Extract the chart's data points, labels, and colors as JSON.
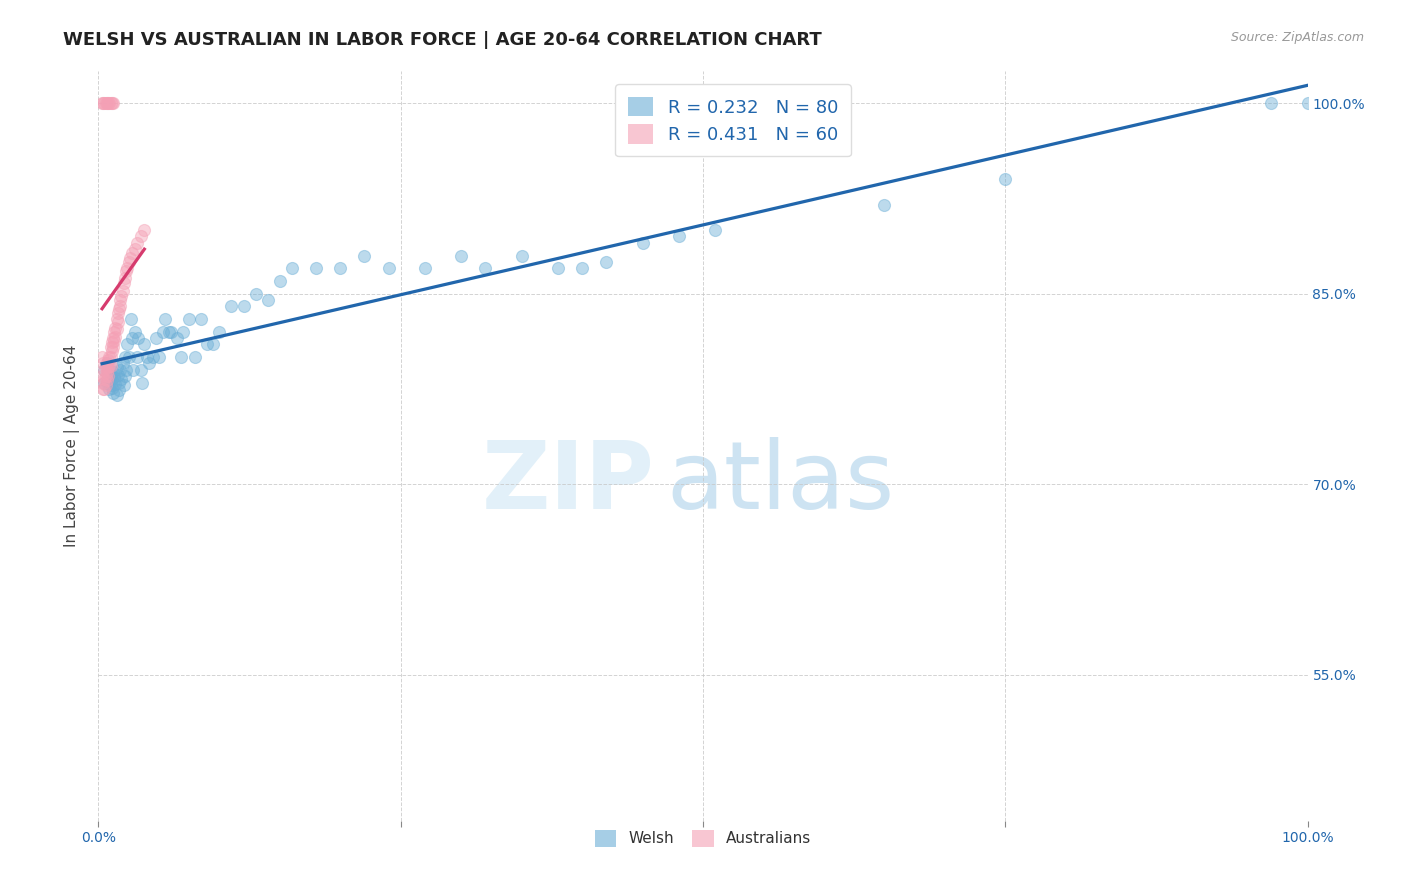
{
  "title": "WELSH VS AUSTRALIAN IN LABOR FORCE | AGE 20-64 CORRELATION CHART",
  "source": "Source: ZipAtlas.com",
  "ylabel": "In Labor Force | Age 20-64",
  "ytick_labels": [
    "100.0%",
    "85.0%",
    "70.0%",
    "55.0%"
  ],
  "ytick_values": [
    1.0,
    0.85,
    0.7,
    0.55
  ],
  "xlim": [
    0.0,
    1.0
  ],
  "ylim": [
    0.435,
    1.025
  ],
  "welsh_color": "#6baed6",
  "australians_color": "#f4a0b5",
  "welsh_line_color": "#2166ac",
  "australians_line_color": "#d63b6e",
  "background_color": "#ffffff",
  "grid_color": "#c8c8c8",
  "title_fontsize": 13,
  "axis_label_fontsize": 11,
  "tick_fontsize": 10,
  "marker_size": 75,
  "marker_alpha": 0.45,
  "welsh_scatter_x": [
    0.005,
    0.005,
    0.007,
    0.007,
    0.008,
    0.009,
    0.009,
    0.01,
    0.01,
    0.011,
    0.011,
    0.012,
    0.012,
    0.013,
    0.014,
    0.015,
    0.015,
    0.016,
    0.017,
    0.017,
    0.018,
    0.019,
    0.02,
    0.021,
    0.022,
    0.022,
    0.023,
    0.024,
    0.025,
    0.027,
    0.028,
    0.029,
    0.03,
    0.032,
    0.033,
    0.035,
    0.036,
    0.038,
    0.04,
    0.042,
    0.045,
    0.048,
    0.05,
    0.053,
    0.055,
    0.058,
    0.06,
    0.065,
    0.068,
    0.07,
    0.075,
    0.08,
    0.085,
    0.09,
    0.095,
    0.1,
    0.11,
    0.12,
    0.13,
    0.14,
    0.15,
    0.16,
    0.18,
    0.2,
    0.22,
    0.24,
    0.27,
    0.3,
    0.32,
    0.35,
    0.38,
    0.4,
    0.42,
    0.45,
    0.48,
    0.51,
    0.65,
    0.75,
    0.97,
    1.0
  ],
  "welsh_scatter_y": [
    0.79,
    0.78,
    0.795,
    0.78,
    0.785,
    0.78,
    0.775,
    0.785,
    0.778,
    0.783,
    0.776,
    0.788,
    0.772,
    0.784,
    0.779,
    0.792,
    0.77,
    0.786,
    0.78,
    0.774,
    0.79,
    0.783,
    0.795,
    0.778,
    0.8,
    0.785,
    0.79,
    0.81,
    0.8,
    0.83,
    0.815,
    0.79,
    0.82,
    0.8,
    0.815,
    0.79,
    0.78,
    0.81,
    0.8,
    0.795,
    0.8,
    0.815,
    0.8,
    0.82,
    0.83,
    0.82,
    0.82,
    0.815,
    0.8,
    0.82,
    0.83,
    0.8,
    0.83,
    0.81,
    0.81,
    0.82,
    0.84,
    0.84,
    0.85,
    0.845,
    0.86,
    0.87,
    0.87,
    0.87,
    0.88,
    0.87,
    0.87,
    0.88,
    0.87,
    0.88,
    0.87,
    0.87,
    0.875,
    0.89,
    0.895,
    0.9,
    0.92,
    0.94,
    1.0,
    1.0
  ],
  "australian_scatter_x": [
    0.003,
    0.003,
    0.004,
    0.004,
    0.004,
    0.005,
    0.005,
    0.005,
    0.006,
    0.006,
    0.006,
    0.007,
    0.007,
    0.007,
    0.008,
    0.008,
    0.008,
    0.009,
    0.009,
    0.01,
    0.01,
    0.01,
    0.011,
    0.011,
    0.012,
    0.012,
    0.013,
    0.013,
    0.014,
    0.014,
    0.015,
    0.015,
    0.016,
    0.016,
    0.017,
    0.018,
    0.018,
    0.019,
    0.02,
    0.021,
    0.022,
    0.023,
    0.024,
    0.025,
    0.026,
    0.028,
    0.03,
    0.032,
    0.035,
    0.038,
    0.003,
    0.004,
    0.005,
    0.006,
    0.007,
    0.008,
    0.009,
    0.01,
    0.011,
    0.012
  ],
  "australian_scatter_y": [
    0.8,
    0.785,
    0.795,
    0.78,
    0.775,
    0.79,
    0.783,
    0.775,
    0.792,
    0.785,
    0.778,
    0.795,
    0.788,
    0.782,
    0.798,
    0.792,
    0.785,
    0.8,
    0.793,
    0.808,
    0.8,
    0.793,
    0.812,
    0.805,
    0.815,
    0.808,
    0.82,
    0.813,
    0.823,
    0.816,
    0.83,
    0.822,
    0.835,
    0.828,
    0.838,
    0.845,
    0.84,
    0.848,
    0.852,
    0.858,
    0.862,
    0.868,
    0.87,
    0.875,
    0.878,
    0.882,
    0.885,
    0.89,
    0.895,
    0.9,
    1.0,
    1.0,
    1.0,
    1.0,
    1.0,
    1.0,
    1.0,
    1.0,
    1.0,
    1.0
  ]
}
